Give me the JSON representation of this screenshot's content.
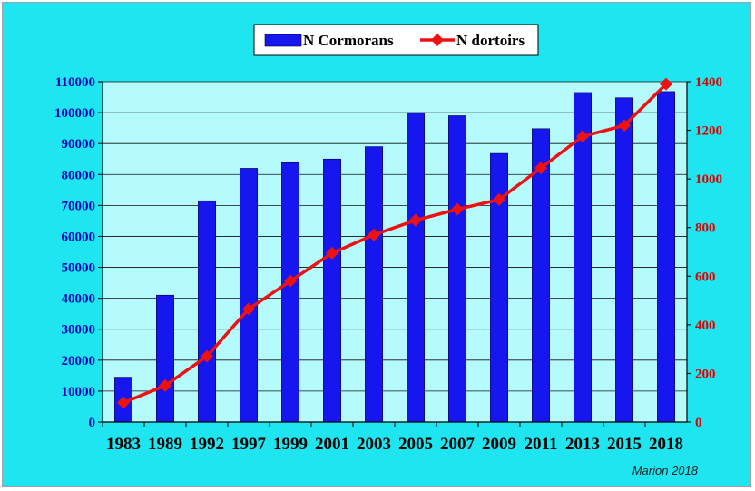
{
  "chart_data": {
    "type": "bar+line",
    "categories": [
      "1983",
      "1989",
      "1992",
      "1997",
      "1999",
      "2001",
      "2003",
      "2005",
      "2007",
      "2009",
      "2011",
      "2013",
      "2015",
      "2018"
    ],
    "series": [
      {
        "name": "N Cormorans",
        "type": "bar",
        "axis": "left",
        "values": [
          14500,
          41000,
          71500,
          82000,
          83800,
          85000,
          89000,
          100000,
          99000,
          86800,
          94800,
          106500,
          104800,
          106800
        ]
      },
      {
        "name": "N dortoirs",
        "type": "line",
        "axis": "right",
        "values": [
          80,
          150,
          270,
          465,
          580,
          695,
          770,
          830,
          875,
          915,
          1045,
          1175,
          1220,
          1390
        ]
      }
    ],
    "left_axis": {
      "ylim": [
        0,
        110000
      ],
      "ticks": [
        "0",
        "10000",
        "20000",
        "30000",
        "40000",
        "50000",
        "60000",
        "70000",
        "80000",
        "90000",
        "100000",
        "110000"
      ]
    },
    "right_axis": {
      "ylim": [
        0,
        1400
      ],
      "ticks": [
        "0",
        "200",
        "400",
        "600",
        "800",
        "1000",
        "1200",
        "1400"
      ]
    },
    "legend_placement": "top-center",
    "grid": "horizontal",
    "colors": {
      "background": "#1ee5ef",
      "plot_area": "#b5fafd",
      "bars": "#1616ee",
      "line": "#ee1111",
      "left_axis_text": "#0000bb",
      "right_axis_text": "#dd0000",
      "grid": "#111111"
    }
  },
  "credit": "Marion 2018"
}
